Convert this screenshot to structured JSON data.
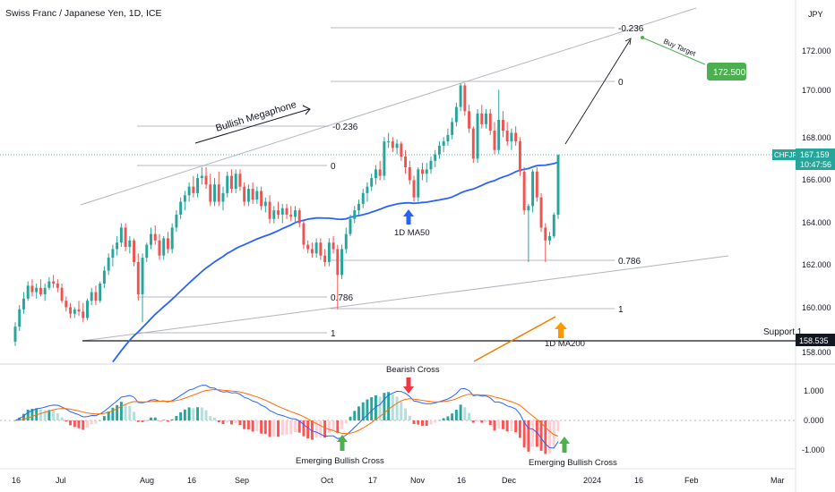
{
  "header": {
    "symbol_title": "Swiss Franc / Japanese Yen, 1D, ICE",
    "currency": "JPY"
  },
  "chart_data": {
    "type": "candlestick",
    "price_axis": {
      "ticks": [
        "172.000",
        "170.000",
        "168.000",
        "166.000",
        "164.000",
        "162.000",
        "160.000",
        "158.000"
      ],
      "ylim": [
        157.6,
        173.6
      ]
    },
    "oscillator_axis": {
      "ticks": [
        "1.000",
        "0.000",
        "-1.000"
      ],
      "ylim": [
        -1.65,
        1.95
      ]
    },
    "time_axis": {
      "ticks": [
        "16",
        "Jul",
        "Aug",
        "16",
        "Sep",
        "Oct",
        "17",
        "Nov",
        "16",
        "Dec",
        "2024",
        "16",
        "Feb",
        "Mar"
      ]
    },
    "candles": [
      [
        158.5,
        159.4,
        158.3,
        159.2
      ],
      [
        159.2,
        160.2,
        159.0,
        160.0
      ],
      [
        160.0,
        160.8,
        159.8,
        160.5
      ],
      [
        160.5,
        161.3,
        160.4,
        161.1
      ],
      [
        161.1,
        161.4,
        160.6,
        160.8
      ],
      [
        160.8,
        161.2,
        160.5,
        161.0
      ],
      [
        161.0,
        161.4,
        160.6,
        160.7
      ],
      [
        160.7,
        161.2,
        160.4,
        161.0
      ],
      [
        161.0,
        161.5,
        160.9,
        161.3
      ],
      [
        161.3,
        161.6,
        161.0,
        161.2
      ],
      [
        161.2,
        161.4,
        160.8,
        161.0
      ],
      [
        161.0,
        161.2,
        160.3,
        160.4
      ],
      [
        160.4,
        160.6,
        159.9,
        160.1
      ],
      [
        160.1,
        160.3,
        159.6,
        159.8
      ],
      [
        159.8,
        160.1,
        159.6,
        160.0
      ],
      [
        160.0,
        160.4,
        159.7,
        159.9
      ],
      [
        159.9,
        160.3,
        159.4,
        159.6
      ],
      [
        159.6,
        160.5,
        159.5,
        160.4
      ],
      [
        160.4,
        161.0,
        160.2,
        160.8
      ],
      [
        160.8,
        161.1,
        160.2,
        160.4
      ],
      [
        160.4,
        161.3,
        160.3,
        161.2
      ],
      [
        161.2,
        162.0,
        161.0,
        161.8
      ],
      [
        161.8,
        162.6,
        161.6,
        162.4
      ],
      [
        162.4,
        163.0,
        162.0,
        162.8
      ],
      [
        162.8,
        163.4,
        162.5,
        163.1
      ],
      [
        163.1,
        164.0,
        162.9,
        163.8
      ],
      [
        163.8,
        164.0,
        162.7,
        162.9
      ],
      [
        162.9,
        163.4,
        162.6,
        163.2
      ],
      [
        163.2,
        163.3,
        162.0,
        162.2
      ],
      [
        162.2,
        162.6,
        160.4,
        160.7
      ],
      [
        160.7,
        162.6,
        159.4,
        162.4
      ],
      [
        162.4,
        163.1,
        162.2,
        163.0
      ],
      [
        163.0,
        163.8,
        162.8,
        163.5
      ],
      [
        163.5,
        163.9,
        163.0,
        163.2
      ],
      [
        163.2,
        163.5,
        162.3,
        162.5
      ],
      [
        162.5,
        163.4,
        162.3,
        163.3
      ],
      [
        163.3,
        163.6,
        162.6,
        162.8
      ],
      [
        162.8,
        164.0,
        162.6,
        163.8
      ],
      [
        163.8,
        164.6,
        163.6,
        164.4
      ],
      [
        164.4,
        165.2,
        164.2,
        165.0
      ],
      [
        165.0,
        165.5,
        164.6,
        165.3
      ],
      [
        165.3,
        165.9,
        165.0,
        165.7
      ],
      [
        165.7,
        166.2,
        165.2,
        165.4
      ],
      [
        165.4,
        166.3,
        165.2,
        166.1
      ],
      [
        166.1,
        166.6,
        165.8,
        166.2
      ],
      [
        166.2,
        166.6,
        165.6,
        165.8
      ],
      [
        165.8,
        166.3,
        164.8,
        165.0
      ],
      [
        165.0,
        166.1,
        164.8,
        165.8
      ],
      [
        165.8,
        166.4,
        164.8,
        165.0
      ],
      [
        165.0,
        165.7,
        164.6,
        165.4
      ],
      [
        165.4,
        166.4,
        165.2,
        166.2
      ],
      [
        166.2,
        166.5,
        165.4,
        165.6
      ],
      [
        165.6,
        166.5,
        165.4,
        166.3
      ],
      [
        166.3,
        166.5,
        165.5,
        165.7
      ],
      [
        165.7,
        165.9,
        164.8,
        165.0
      ],
      [
        165.0,
        165.8,
        164.8,
        165.6
      ],
      [
        165.6,
        165.9,
        164.9,
        165.1
      ],
      [
        165.1,
        165.7,
        164.9,
        165.5
      ],
      [
        165.5,
        165.7,
        164.6,
        164.8
      ],
      [
        164.8,
        165.2,
        164.5,
        165.0
      ],
      [
        165.0,
        165.3,
        164.0,
        164.2
      ],
      [
        164.2,
        164.8,
        164.0,
        164.6
      ],
      [
        164.6,
        165.0,
        164.2,
        164.4
      ],
      [
        164.4,
        164.9,
        164.0,
        164.7
      ],
      [
        164.7,
        164.9,
        164.2,
        164.4
      ],
      [
        164.4,
        164.8,
        164.1,
        164.3
      ],
      [
        164.3,
        164.8,
        164.0,
        164.6
      ],
      [
        164.6,
        164.7,
        163.8,
        164.0
      ],
      [
        164.0,
        164.1,
        162.8,
        163.0
      ],
      [
        163.0,
        163.2,
        162.6,
        162.8
      ],
      [
        162.8,
        163.1,
        162.4,
        162.6
      ],
      [
        162.6,
        163.3,
        162.4,
        163.1
      ],
      [
        163.1,
        163.3,
        162.3,
        162.5
      ],
      [
        162.5,
        162.8,
        162.0,
        162.2
      ],
      [
        162.2,
        163.3,
        162.0,
        163.1
      ],
      [
        163.1,
        163.4,
        162.6,
        162.8
      ],
      [
        162.8,
        163.0,
        160.0,
        161.6
      ],
      [
        161.6,
        163.0,
        161.4,
        162.8
      ],
      [
        162.8,
        163.8,
        162.6,
        163.5
      ],
      [
        163.5,
        164.4,
        163.4,
        164.2
      ],
      [
        164.2,
        164.8,
        164.0,
        164.6
      ],
      [
        164.6,
        165.1,
        164.4,
        164.9
      ],
      [
        164.9,
        165.6,
        164.7,
        165.4
      ],
      [
        165.4,
        165.9,
        165.0,
        165.7
      ],
      [
        165.7,
        166.3,
        165.5,
        166.1
      ],
      [
        166.1,
        166.7,
        165.8,
        166.5
      ],
      [
        166.5,
        166.9,
        166.0,
        166.2
      ],
      [
        166.2,
        168.0,
        166.0,
        167.8
      ],
      [
        167.8,
        168.2,
        167.5,
        167.8
      ],
      [
        167.8,
        168.0,
        167.3,
        167.5
      ],
      [
        167.5,
        167.9,
        167.2,
        167.7
      ],
      [
        167.7,
        167.8,
        166.9,
        167.1
      ],
      [
        167.1,
        167.4,
        166.3,
        166.6
      ],
      [
        166.6,
        166.9,
        165.8,
        166.0
      ],
      [
        166.0,
        166.2,
        165.0,
        165.2
      ],
      [
        165.2,
        166.6,
        165.0,
        166.5
      ],
      [
        166.5,
        166.8,
        166.0,
        166.3
      ],
      [
        166.3,
        166.8,
        165.9,
        166.5
      ],
      [
        166.5,
        167.1,
        166.3,
        166.9
      ],
      [
        166.9,
        167.4,
        166.6,
        167.2
      ],
      [
        167.2,
        167.8,
        167.0,
        167.6
      ],
      [
        167.6,
        168.0,
        167.3,
        167.8
      ],
      [
        167.8,
        168.4,
        167.6,
        168.1
      ],
      [
        168.1,
        168.9,
        167.9,
        168.7
      ],
      [
        168.7,
        169.6,
        168.5,
        169.4
      ],
      [
        169.4,
        170.5,
        169.2,
        170.4
      ],
      [
        170.4,
        170.5,
        169.0,
        169.2
      ],
      [
        169.2,
        169.5,
        168.2,
        168.4
      ],
      [
        168.4,
        168.5,
        166.8,
        167.0
      ],
      [
        167.0,
        169.3,
        166.8,
        169.1
      ],
      [
        169.1,
        169.5,
        168.4,
        168.6
      ],
      [
        168.6,
        169.3,
        168.4,
        169.1
      ],
      [
        169.1,
        169.3,
        168.1,
        168.3
      ],
      [
        168.3,
        168.7,
        167.2,
        167.4
      ],
      [
        167.4,
        170.2,
        167.2,
        168.8
      ],
      [
        168.8,
        169.2,
        168.0,
        168.3
      ],
      [
        168.3,
        168.7,
        167.6,
        167.8
      ],
      [
        167.8,
        168.4,
        167.4,
        168.2
      ],
      [
        168.2,
        168.5,
        167.6,
        167.8
      ],
      [
        167.8,
        168.0,
        166.2,
        166.4
      ],
      [
        166.4,
        166.6,
        164.4,
        164.6
      ],
      [
        164.6,
        164.9,
        162.2,
        164.8
      ],
      [
        164.8,
        166.5,
        164.5,
        166.4
      ],
      [
        166.4,
        166.6,
        165.0,
        165.2
      ],
      [
        165.2,
        165.4,
        163.6,
        163.8
      ],
      [
        163.8,
        164.0,
        162.2,
        163.2
      ],
      [
        163.2,
        163.6,
        163.0,
        163.4
      ],
      [
        163.4,
        164.5,
        163.3,
        164.4
      ],
      [
        164.4,
        167.2,
        164.2,
        167.159
      ]
    ],
    "ma50_label": "1D MA50",
    "ma200_label": "1D MA200",
    "current_price": {
      "symbol": "CHFJPY",
      "price": "167.159",
      "countdown": "10:47:56"
    },
    "support": {
      "label": "Support 1",
      "price_label": "158.535",
      "price": 158.535
    },
    "target": {
      "label": "Buy Target",
      "price_label": "172.500",
      "price": 172.5
    },
    "fib_levels": [
      {
        "label": "-0.236",
        "price": 168.55
      },
      {
        "label": "0",
        "price": 166.75
      },
      {
        "label": "0.786",
        "price": 160.95
      },
      {
        "label": "1",
        "price": 159.0
      },
      {
        "label": "-0.236",
        "price": 172.9
      },
      {
        "label": "0",
        "price": 170.5
      },
      {
        "label": "0.786",
        "price": 162.3
      },
      {
        "label": "1",
        "price": 160.0
      }
    ],
    "annotations": {
      "megaphone": "Bullish Megaphone",
      "bearish_cross": "Bearish Cross",
      "emerging_cross_1": "Emerging Bullish Cross",
      "emerging_cross_2": "Emerging Bullish Cross"
    },
    "colors": {
      "up": "#26a69a",
      "down": "#ef5350",
      "ma50": "#2962ff",
      "ma200": "#f57c00",
      "macd": "#2962ff",
      "signal": "#ff6d00",
      "target_green": "#4caf50",
      "arrow_blue": "#2962ff",
      "arrow_red": "#f23645",
      "arrow_green": "#4caf50",
      "arrow_orange": "#ff9800"
    }
  }
}
